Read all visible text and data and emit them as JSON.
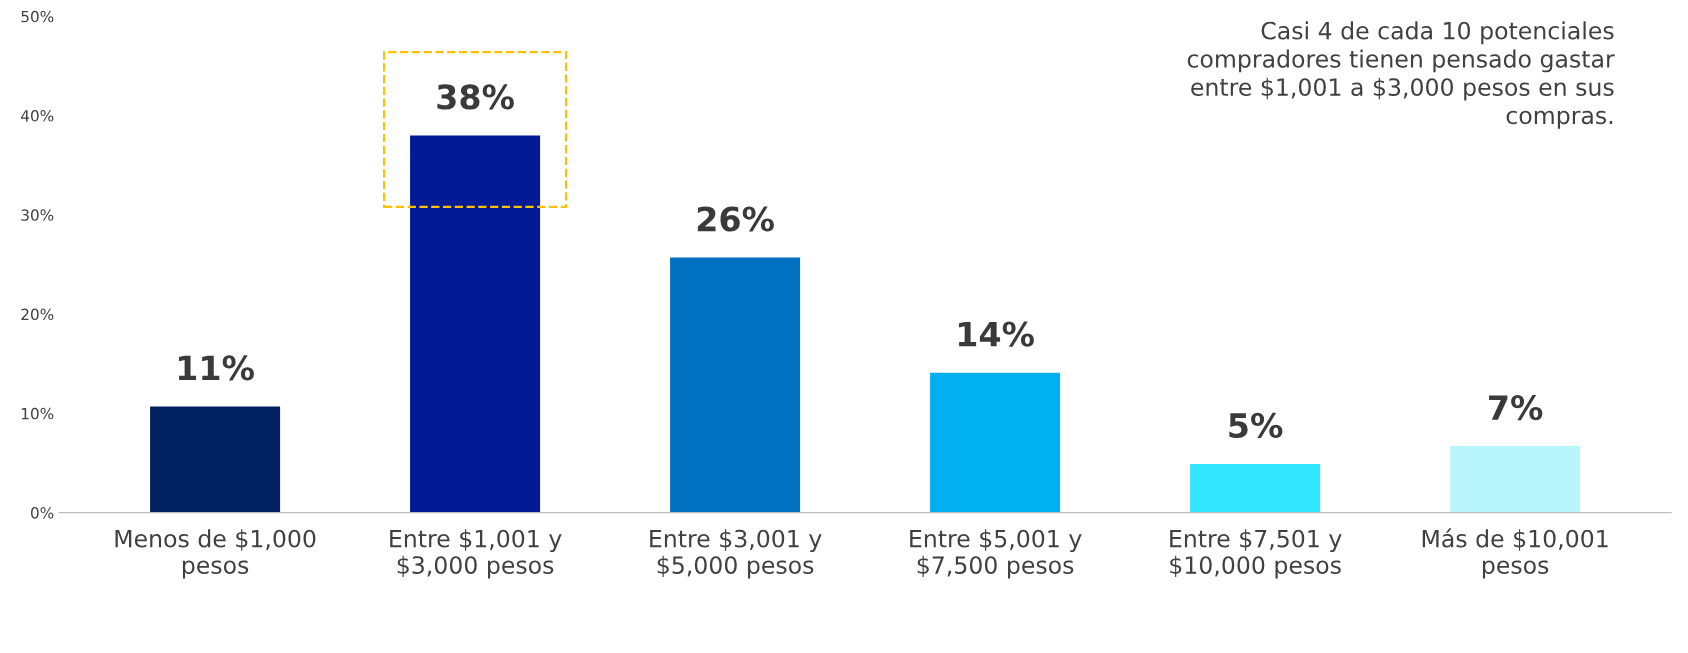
{
  "chart_data": {
    "type": "bar",
    "categories": [
      "Menos de $1,000\npesos",
      "Entre $1,001 y\n$3,000 pesos",
      "Entre $3,001 y\n$5,000 pesos",
      "Entre $5,001 y\n$7,500 pesos",
      "Entre $7,501 y\n$10,000 pesos",
      "Más de $10,001\npesos"
    ],
    "values": [
      10.7,
      38.0,
      25.7,
      14.1,
      4.9,
      6.7
    ],
    "value_labels": [
      "11%",
      "38%",
      "26%",
      "14%",
      "5%",
      "7%"
    ],
    "colors": [
      "#002060",
      "#021b95",
      "#0070c0",
      "#00b0f0",
      "#33e6ff",
      "#b9f6fc"
    ],
    "ylim": [
      0,
      50
    ],
    "yticks": [
      {
        "value": 0,
        "label": "0%"
      },
      {
        "value": 10,
        "label": "10%"
      },
      {
        "value": 20,
        "label": "20%"
      },
      {
        "value": 30,
        "label": "30%"
      },
      {
        "value": 40,
        "label": "40%"
      },
      {
        "value": 50,
        "label": "50%"
      }
    ],
    "grid": false,
    "legend": false,
    "annotations": [
      "Casi 4 de cada 10 potenciales\ncompradores tienen pensado gastar\nentre $1,001 a $3,000 pesos en sus\ncompras."
    ]
  }
}
